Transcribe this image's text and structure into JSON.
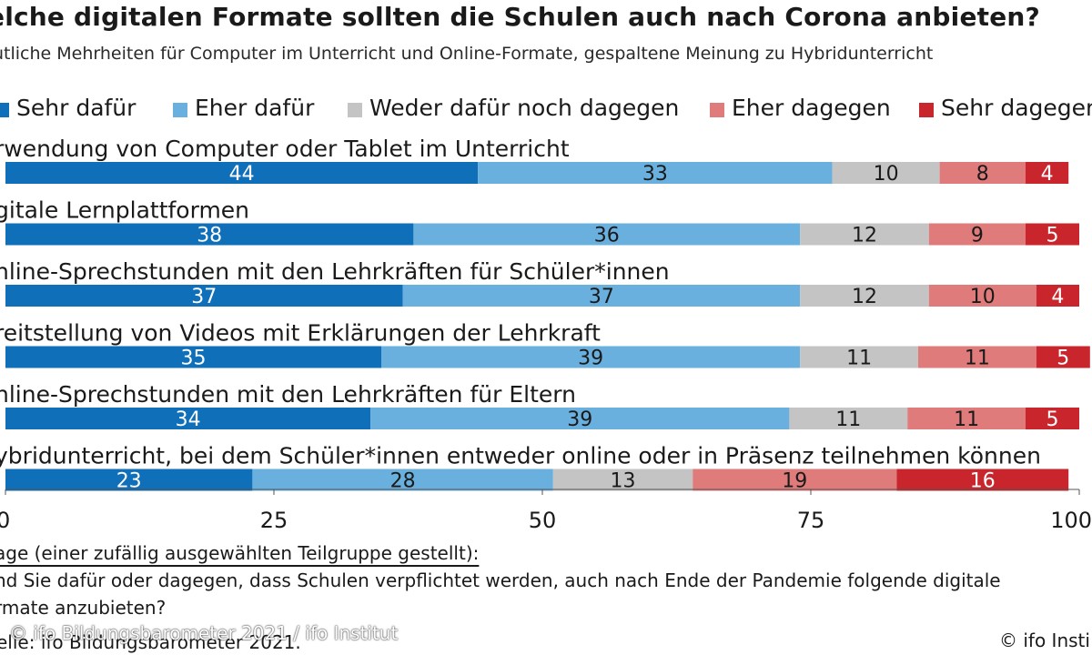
{
  "title": "elche digitalen Formate sollten die Schulen auch nach Corona anbieten?",
  "subtitle": "utliche Mehrheiten für Computer im Unterricht und Online-Formate, gespaltene Meinung zu Hybridunterricht",
  "legend": [
    {
      "label": "Sehr dafür",
      "color": "#0f6fb8"
    },
    {
      "label": "Eher dafür",
      "color": "#6ab0de"
    },
    {
      "label": "Weder dafür noch dagegen",
      "color": "#c4c4c4"
    },
    {
      "label": "Eher dagegen",
      "color": "#e07b7b"
    },
    {
      "label": "Sehr dagegen",
      "color": "#c8262c"
    }
  ],
  "chart_data": {
    "type": "bar",
    "orientation": "horizontal-stacked",
    "unit": "Prozent",
    "categories": [
      "rwendung von Computer oder Tablet im Unterricht",
      "gitale Lernplattformen",
      "nline-Sprechstunden mit den Lehrkräften für Schüler*innen",
      "reitstellung von Videos mit Erklärungen der Lehrkraft",
      "nline-Sprechstunden mit den Lehrkräften für Eltern",
      "ybridunterricht, bei dem Schüler*innen entweder online oder in Präsenz teilnehmen können"
    ],
    "series": [
      {
        "name": "Sehr dafür",
        "values": [
          44,
          38,
          37,
          35,
          34,
          23
        ]
      },
      {
        "name": "Eher dafür",
        "values": [
          33,
          36,
          37,
          39,
          39,
          28
        ]
      },
      {
        "name": "Weder dafür noch dagegen",
        "values": [
          10,
          12,
          12,
          11,
          11,
          13
        ]
      },
      {
        "name": "Eher dagegen",
        "values": [
          8,
          9,
          10,
          11,
          11,
          19
        ]
      },
      {
        "name": "Sehr dagegen",
        "values": [
          4,
          5,
          4,
          5,
          5,
          16
        ]
      }
    ],
    "xlim": [
      0,
      100
    ],
    "xticks": [
      0,
      25,
      50,
      75,
      100
    ],
    "xtick_labels": [
      "0",
      "25",
      "50",
      "75",
      "100"
    ],
    "legend_position": "top"
  },
  "question": {
    "label": "age (einer zufällig ausgewählten Teilgruppe gestellt):",
    "line1": "nd Sie dafür oder dagegen, dass Schulen verpflichtet werden, auch nach Ende der Pandemie folgende digitale",
    "line2": "rmate anzubieten?"
  },
  "source": "elle: ifo Bildungsbarometer 2021.",
  "watermark": "© ifo Bildungsbarometer 2021 / ifo Institut",
  "copyright": "© ifo Insti"
}
